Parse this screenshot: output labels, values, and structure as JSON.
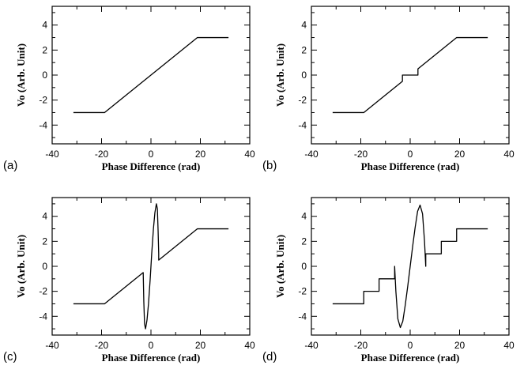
{
  "chart_data": [
    {
      "type": "line",
      "panel_label": "(a)",
      "xlabel": "Phase Difference (rad)",
      "ylabel": "Vo (Arb. Unit)",
      "xlim": [
        -40,
        40
      ],
      "ylim": [
        -5.5,
        5.5
      ],
      "xticks": [
        -40,
        -20,
        0,
        20,
        40
      ],
      "yticks": [
        -4,
        -2,
        0,
        2,
        4
      ],
      "grid": false,
      "series": [
        {
          "x": [
            -31.4,
            -18.8,
            18.8,
            31.4
          ],
          "y": [
            -3,
            -3,
            3,
            3
          ]
        }
      ]
    },
    {
      "type": "line",
      "panel_label": "(b)",
      "xlabel": "Phase Difference (rad)",
      "ylabel": "Vo (Arb. Unit)",
      "xlim": [
        -40,
        40
      ],
      "ylim": [
        -5.5,
        5.5
      ],
      "xticks": [
        -40,
        -20,
        0,
        20,
        40
      ],
      "yticks": [
        -4,
        -2,
        0,
        2,
        4
      ],
      "grid": false,
      "series": [
        {
          "x": [
            -31.4,
            -18.8,
            -3.14,
            -3.14,
            3.14,
            3.14,
            18.8,
            31.4
          ],
          "y": [
            -3,
            -3,
            -0.5,
            0,
            0,
            0.5,
            3,
            3
          ]
        }
      ]
    },
    {
      "type": "line",
      "panel_label": "(c)",
      "xlabel": "Phase Difference (rad)",
      "ylabel": "Vo (Arb. Unit)",
      "xlim": [
        -40,
        40
      ],
      "ylim": [
        -5.5,
        5.5
      ],
      "xticks": [
        -40,
        -20,
        0,
        20,
        40
      ],
      "yticks": [
        -4,
        -2,
        0,
        2,
        4
      ],
      "grid": false,
      "series": [
        {
          "x": [
            -31.4,
            -18.8,
            -3.14,
            -2.9,
            -2.6,
            -2.2,
            -1.6,
            -1.0,
            -0.3,
            0.3,
            1.0,
            1.6,
            2.2,
            2.6,
            2.9,
            3.14,
            3.14,
            18.8,
            31.4
          ],
          "y": [
            -3,
            -3,
            -0.5,
            -2.8,
            -4.6,
            -5.0,
            -4.3,
            -3.0,
            -1.0,
            1.0,
            3.0,
            4.3,
            5.0,
            4.6,
            2.8,
            1.0,
            0.5,
            3,
            3
          ]
        }
      ]
    },
    {
      "type": "line",
      "panel_label": "(d)",
      "xlabel": "Phase Difference (rad)",
      "ylabel": "Vo (Arb. Unit)",
      "xlim": [
        -40,
        40
      ],
      "ylim": [
        -5.5,
        5.5
      ],
      "xticks": [
        -40,
        -20,
        0,
        20,
        40
      ],
      "yticks": [
        -4,
        -2,
        0,
        2,
        4
      ],
      "grid": false,
      "series": [
        {
          "x": [
            -31.4,
            -18.8,
            -18.8,
            -12.6,
            -12.6,
            -6.3,
            -6.3,
            -5.8,
            -5.0,
            -4.0,
            -3.0,
            -2.0,
            -1.0,
            0.0,
            1.0,
            2.0,
            3.0,
            4.0,
            5.0,
            5.8,
            6.3,
            6.3,
            12.6,
            12.6,
            18.8,
            18.8,
            31.4
          ],
          "y": [
            -3,
            -3,
            -2,
            -2,
            -1,
            -1,
            0.0,
            -2.0,
            -4.2,
            -4.9,
            -4.4,
            -3.1,
            -1.6,
            0.0,
            1.6,
            3.1,
            4.4,
            4.9,
            4.2,
            2.0,
            0.0,
            1,
            1,
            2,
            2,
            3,
            3
          ]
        }
      ]
    }
  ]
}
